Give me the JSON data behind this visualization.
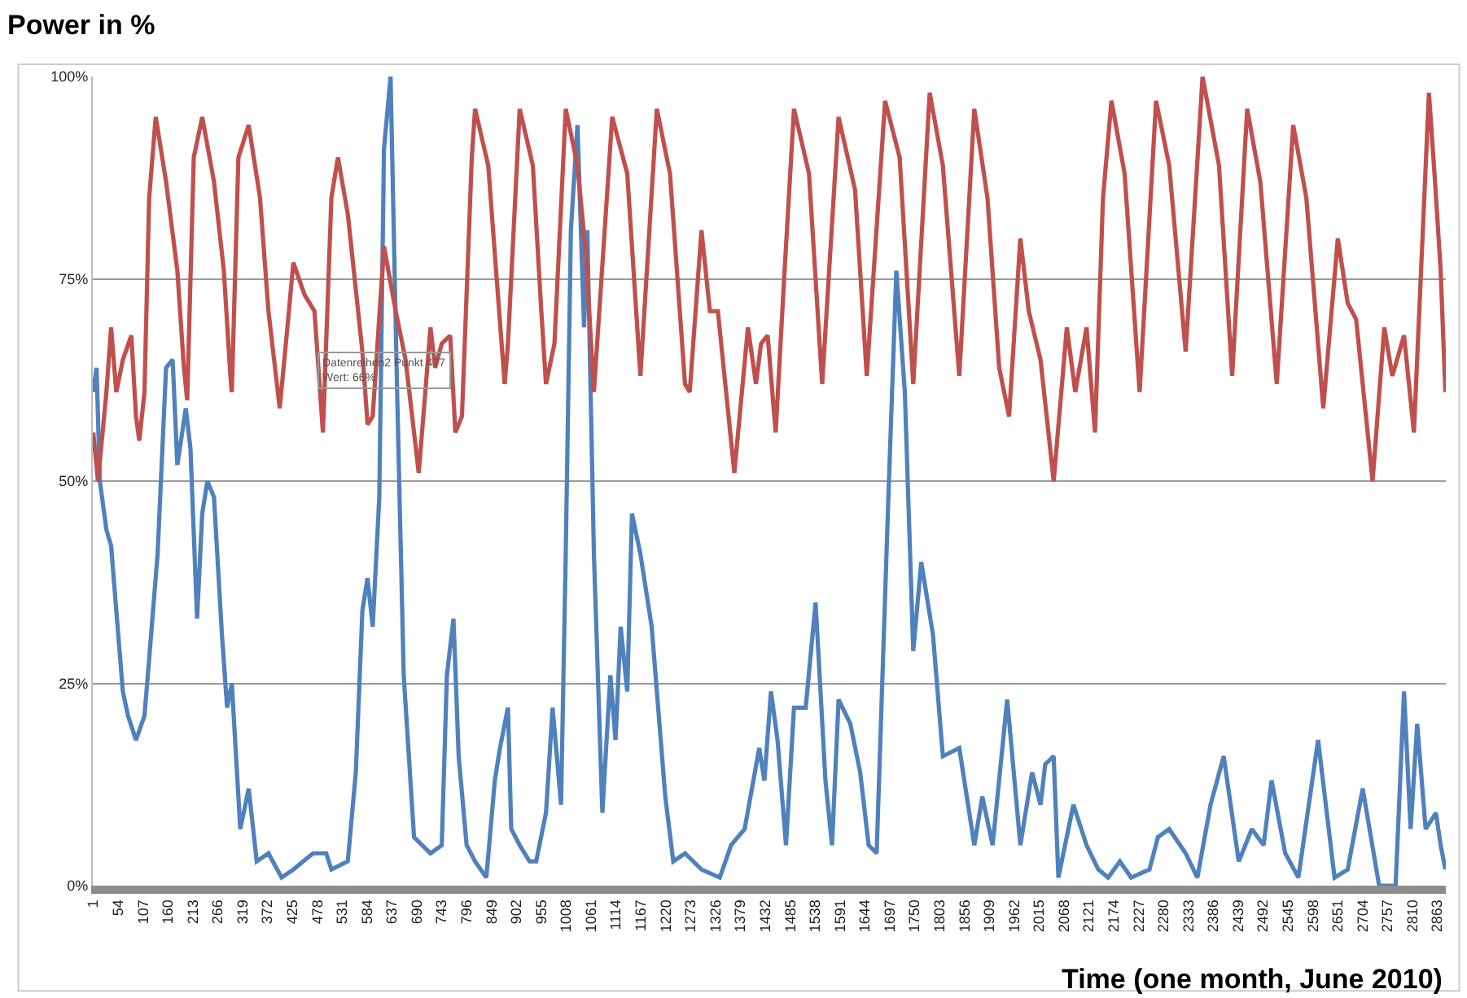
{
  "chart_data": {
    "type": "line",
    "title": "Power in %",
    "xlabel": "Time (one month, June 2010)",
    "xlim": [
      0,
      2881
    ],
    "xticks": [
      1,
      54,
      107,
      160,
      213,
      266,
      319,
      372,
      425,
      478,
      531,
      584,
      637,
      690,
      743,
      796,
      849,
      902,
      955,
      1008,
      1061,
      1114,
      1167,
      1220,
      1273,
      1326,
      1379,
      1432,
      1485,
      1538,
      1591,
      1644,
      1697,
      1750,
      1803,
      1856,
      1909,
      1962,
      2015,
      2068,
      2121,
      2174,
      2227,
      2280,
      2333,
      2386,
      2439,
      2492,
      2545,
      2598,
      2651,
      2704,
      2757,
      2810,
      2863
    ],
    "ylim": [
      0,
      100
    ],
    "yticks": [
      {
        "value": 0,
        "label": "0%"
      },
      {
        "value": 25,
        "label": "25%"
      },
      {
        "value": 50,
        "label": "50%"
      },
      {
        "value": 75,
        "label": "75%"
      },
      {
        "value": 100,
        "label": "100%"
      }
    ],
    "grid": "y",
    "marker": "none",
    "line_style": "solid",
    "annotations": [
      {
        "text": "Datenreihen2 Punkt 477\nWert: 66%",
        "x": 477,
        "y": 66
      }
    ],
    "series": [
      {
        "color": "#4f81bd",
        "x": [
          1,
          8,
          15,
          29,
          39,
          50,
          64,
          75,
          92,
          110,
          120,
          138,
          156,
          170,
          180,
          198,
          208,
          222,
          233,
          244,
          258,
          275,
          286,
          296,
          314,
          332,
          349,
          374,
          402,
          427,
          469,
          497,
          508,
          543,
          560,
          574,
          585,
          596,
          610,
          620,
          634,
          648,
          662,
          684,
          719,
          743,
          754,
          768,
          779,
          796,
          814,
          838,
          856,
          867,
          884,
          891,
          909,
          930,
          944,
          965,
          979,
          997,
          1007,
          1018,
          1032,
          1046,
          1053,
          1067,
          1085,
          1102,
          1113,
          1124,
          1138,
          1148,
          1166,
          1190,
          1219,
          1236,
          1261,
          1296,
          1335,
          1359,
          1388,
          1419,
          1430,
          1444,
          1458,
          1476,
          1493,
          1518,
          1539,
          1560,
          1574,
          1588,
          1613,
          1634,
          1652,
          1669,
          1694,
          1711,
          1729,
          1747,
          1764,
          1789,
          1810,
          1845,
          1877,
          1894,
          1916,
          1947,
          1975,
          2000,
          2018,
          2028,
          2046,
          2056,
          2088,
          2116,
          2141,
          2162,
          2187,
          2211,
          2250,
          2268,
          2292,
          2327,
          2352,
          2380,
          2408,
          2440,
          2468,
          2493,
          2510,
          2539,
          2567,
          2609,
          2644,
          2672,
          2704,
          2739,
          2774,
          2792,
          2806,
          2820,
          2838,
          2860,
          2870,
          2880
        ],
        "values": [
          61,
          64,
          50,
          44,
          42,
          34,
          24,
          21,
          18,
          21,
          28,
          41,
          64,
          65,
          52,
          59,
          54,
          33,
          46,
          50,
          48,
          31,
          22,
          25,
          7,
          12,
          3,
          4,
          1,
          2,
          4,
          4,
          2,
          3,
          14,
          34,
          38,
          32,
          48,
          91,
          100,
          61,
          26,
          6,
          4,
          5,
          26,
          33,
          16,
          5,
          3,
          1,
          13,
          17,
          22,
          7,
          5,
          3,
          3,
          9,
          22,
          10,
          41,
          81,
          94,
          69,
          81,
          41,
          9,
          26,
          18,
          32,
          24,
          46,
          41,
          32,
          11,
          3,
          4,
          2,
          1,
          5,
          7,
          17,
          13,
          24,
          18,
          5,
          22,
          22,
          35,
          13,
          5,
          23,
          20,
          14,
          5,
          4,
          48,
          76,
          61,
          29,
          40,
          31,
          16,
          17,
          5,
          11,
          5,
          23,
          5,
          14,
          10,
          15,
          16,
          1,
          10,
          5,
          2,
          1,
          3,
          1,
          2,
          6,
          7,
          4,
          1,
          10,
          16,
          3,
          7,
          5,
          13,
          4,
          1,
          18,
          1,
          2,
          12,
          0,
          0,
          24,
          7,
          20,
          7,
          9,
          5,
          2
        ]
      },
      {
        "color": "#c0504d",
        "x": [
          1,
          11,
          29,
          39,
          50,
          64,
          82,
          92,
          99,
          110,
          120,
          134,
          156,
          180,
          194,
          201,
          215,
          233,
          258,
          279,
          293,
          296,
          310,
          332,
          356,
          374,
          398,
          416,
          427,
          451,
          472,
          490,
          508,
          522,
          543,
          574,
          585,
          596,
          620,
          645,
          666,
          694,
          708,
          719,
          729,
          743,
          761,
          772,
          786,
          807,
          814,
          842,
          860,
          877,
          884,
          909,
          937,
          955,
          965,
          983,
          1007,
          1032,
          1050,
          1067,
          1106,
          1138,
          1166,
          1201,
          1229,
          1261,
          1271,
          1296,
          1314,
          1331,
          1366,
          1395,
          1412,
          1423,
          1437,
          1454,
          1472,
          1493,
          1525,
          1553,
          1588,
          1623,
          1648,
          1687,
          1718,
          1747,
          1782,
          1810,
          1845,
          1877,
          1905,
          1930,
          1951,
          1975,
          1993,
          2018,
          2046,
          2074,
          2092,
          2116,
          2134,
          2151,
          2169,
          2197,
          2229,
          2264,
          2292,
          2327,
          2363,
          2398,
          2426,
          2458,
          2486,
          2521,
          2556,
          2584,
          2620,
          2651,
          2672,
          2690,
          2725,
          2750,
          2767,
          2792,
          2813,
          2845,
          2858,
          2870,
          2880
        ],
        "values": [
          56,
          50,
          61,
          69,
          61,
          65,
          68,
          58,
          55,
          61,
          85,
          95,
          87,
          76,
          64,
          60,
          90,
          95,
          87,
          76,
          63,
          61,
          90,
          94,
          85,
          71,
          59,
          70,
          77,
          73,
          71,
          56,
          85,
          90,
          83,
          66,
          57,
          58,
          79,
          71,
          65,
          51,
          61,
          69,
          64,
          67,
          68,
          56,
          58,
          90,
          96,
          89,
          75,
          62,
          67,
          96,
          89,
          71,
          62,
          67,
          96,
          89,
          78,
          61,
          95,
          88,
          63,
          96,
          88,
          62,
          61,
          81,
          71,
          71,
          51,
          69,
          62,
          67,
          68,
          56,
          75,
          96,
          88,
          62,
          95,
          86,
          63,
          97,
          90,
          62,
          98,
          89,
          63,
          96,
          85,
          64,
          58,
          80,
          71,
          65,
          50,
          69,
          61,
          69,
          56,
          85,
          97,
          88,
          61,
          97,
          89,
          66,
          100,
          89,
          63,
          96,
          87,
          62,
          94,
          85,
          59,
          80,
          72,
          70,
          50,
          69,
          63,
          68,
          56,
          98,
          87,
          76,
          61
        ]
      }
    ]
  }
}
